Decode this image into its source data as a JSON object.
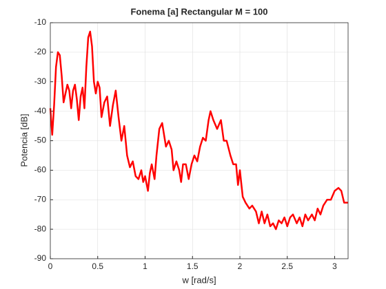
{
  "chart_data": {
    "type": "line",
    "title": "Fonema [a] Rectangular M = 100",
    "x_label": "w [rad/s]",
    "y_label": "Potencia [dB]",
    "xlim": [
      0,
      3.1416
    ],
    "ylim": [
      -90,
      -10
    ],
    "xticks": [
      0,
      0.5,
      1,
      1.5,
      2,
      2.5,
      3
    ],
    "yticks": [
      -90,
      -80,
      -70,
      -60,
      -50,
      -40,
      -30,
      -20,
      -10
    ],
    "grid": true,
    "series": [
      {
        "color": "#ff0000",
        "x": [
          0,
          0.02,
          0.04,
          0.06,
          0.08,
          0.1,
          0.12,
          0.14,
          0.16,
          0.18,
          0.2,
          0.22,
          0.24,
          0.26,
          0.28,
          0.3,
          0.32,
          0.34,
          0.36,
          0.38,
          0.4,
          0.42,
          0.44,
          0.46,
          0.48,
          0.5,
          0.52,
          0.54,
          0.57,
          0.6,
          0.63,
          0.66,
          0.69,
          0.72,
          0.75,
          0.78,
          0.81,
          0.84,
          0.87,
          0.9,
          0.93,
          0.96,
          0.98,
          1.0,
          1.03,
          1.05,
          1.07,
          1.1,
          1.12,
          1.15,
          1.18,
          1.2,
          1.22,
          1.25,
          1.28,
          1.3,
          1.33,
          1.36,
          1.38,
          1.4,
          1.43,
          1.46,
          1.49,
          1.52,
          1.55,
          1.58,
          1.61,
          1.64,
          1.67,
          1.69,
          1.72,
          1.76,
          1.8,
          1.83,
          1.86,
          1.9,
          1.93,
          1.96,
          1.98,
          2.0,
          2.03,
          2.06,
          2.1,
          2.13,
          2.17,
          2.2,
          2.23,
          2.26,
          2.29,
          2.32,
          2.35,
          2.38,
          2.41,
          2.44,
          2.47,
          2.5,
          2.53,
          2.56,
          2.6,
          2.63,
          2.66,
          2.69,
          2.72,
          2.76,
          2.79,
          2.82,
          2.85,
          2.88,
          2.92,
          2.96,
          3.0,
          3.04,
          3.07,
          3.1,
          3.14
        ],
        "values": [
          -39,
          -48,
          -38,
          -25,
          -20,
          -21,
          -28,
          -37,
          -34,
          -31,
          -33,
          -39,
          -33,
          -31,
          -36,
          -43,
          -35,
          -32,
          -39,
          -25,
          -15,
          -13,
          -18,
          -30,
          -34,
          -30,
          -32,
          -42,
          -37,
          -35,
          -45,
          -38,
          -33,
          -42,
          -50,
          -45,
          -55,
          -59,
          -57,
          -62,
          -63,
          -60,
          -64,
          -62,
          -67,
          -61,
          -58,
          -63,
          -55,
          -46,
          -44,
          -48,
          -52,
          -50,
          -53,
          -60,
          -57,
          -60,
          -64,
          -58,
          -58,
          -63,
          -58,
          -55,
          -57,
          -52,
          -49,
          -50,
          -43,
          -40,
          -43,
          -46,
          -43,
          -50,
          -50,
          -55,
          -58,
          -58,
          -65,
          -60,
          -69,
          -71,
          -73,
          -72,
          -74,
          -78,
          -74,
          -78,
          -75,
          -79,
          -78,
          -80,
          -77,
          -78,
          -76,
          -79,
          -76,
          -75,
          -78,
          -76,
          -79,
          -75,
          -77,
          -75,
          -77,
          -73,
          -75,
          -72,
          -70,
          -70,
          -67,
          -66,
          -67,
          -71,
          -71
        ]
      }
    ]
  }
}
